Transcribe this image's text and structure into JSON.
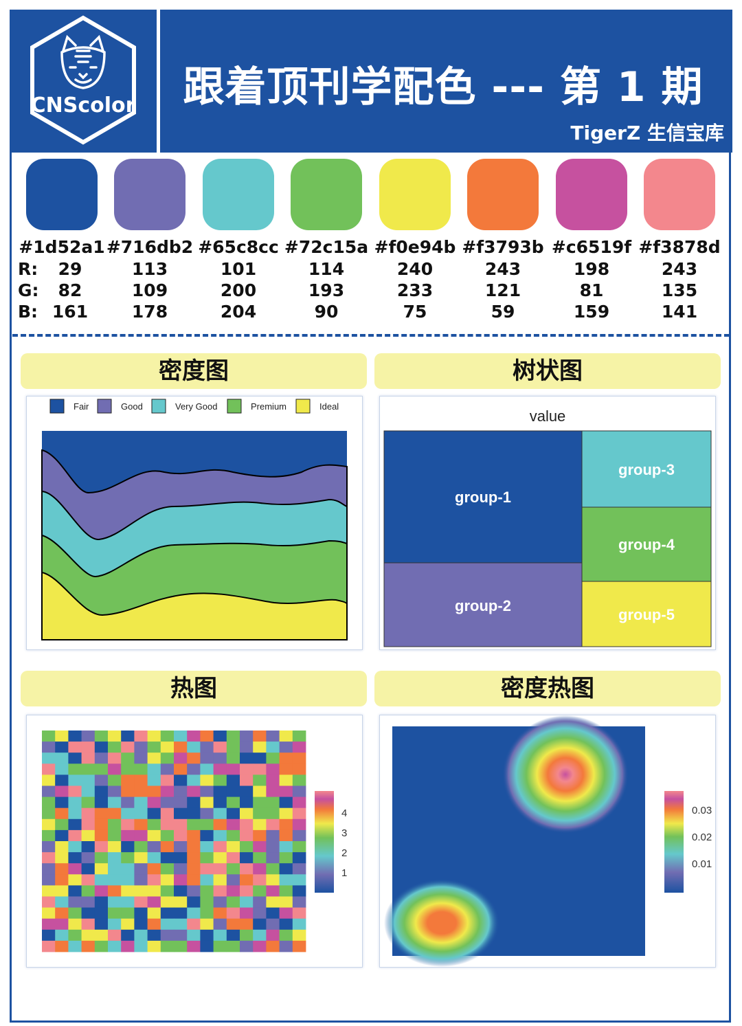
{
  "header": {
    "logo_text": "CNScolor",
    "title": "跟着顶刊学配色 --- 第 1 期",
    "subtitle": "TigerZ 生信宝库"
  },
  "palette": [
    {
      "hex": "#1d52a1",
      "r": "29",
      "g": "82",
      "b": "161"
    },
    {
      "hex": "#716db2",
      "r": "113",
      "g": "109",
      "b": "178"
    },
    {
      "hex": "#65c8cc",
      "r": "101",
      "g": "200",
      "b": "204"
    },
    {
      "hex": "#72c15a",
      "r": "114",
      "g": "193",
      "b": "90"
    },
    {
      "hex": "#f0e94b",
      "r": "240",
      "g": "233",
      "b": "75"
    },
    {
      "hex": "#f3793b",
      "r": "243",
      "g": "121",
      "b": "59"
    },
    {
      "hex": "#c6519f",
      "r": "198",
      "g": "81",
      "b": "159"
    },
    {
      "hex": "#f3878d",
      "r": "243",
      "g": "135",
      "b": "141"
    }
  ],
  "row_labels": {
    "r": "R:",
    "g": "G:",
    "b": "B:"
  },
  "sections": {
    "density": "密度图",
    "treemap": "树状图",
    "heatmap": "热图",
    "density_heatmap": "密度热图"
  },
  "chart_data": [
    {
      "type": "area",
      "legend": [
        "Fair",
        "Good",
        "Very Good",
        "Premium",
        "Ideal"
      ],
      "legend_position": "top"
    },
    {
      "type": "treemap",
      "title": "value",
      "groups": [
        "group-1",
        "group-2",
        "group-3",
        "group-4",
        "group-5"
      ]
    },
    {
      "type": "heatmap",
      "legend_ticks": [
        "4",
        "3",
        "2",
        "1"
      ],
      "legend_position": "right"
    },
    {
      "type": "heatmap",
      "legend_ticks": [
        "0.03",
        "0.02",
        "0.01"
      ],
      "legend_position": "right"
    }
  ]
}
